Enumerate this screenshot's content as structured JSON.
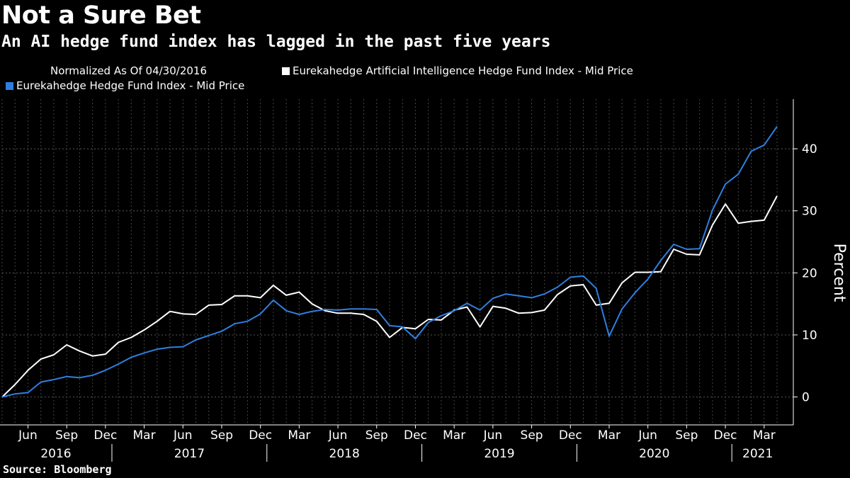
{
  "title": "Not a Sure Bet",
  "subtitle": "An AI hedge fund index has lagged in the past five years",
  "note": "Normalized As Of 04/30/2016",
  "source": "Source: Bloomberg",
  "colors": {
    "background": "#000000",
    "ai_series": "#ffffff",
    "hf_series": "#2f7fe0",
    "grid": "#555555"
  },
  "chart_data": {
    "type": "line",
    "ylabel": "Percent",
    "ylim": [
      -4.5,
      48
    ],
    "yticks": [
      0,
      10,
      20,
      30,
      40
    ],
    "grid": true,
    "legend_position": "top-left",
    "x_month_ticks": [
      "Jun",
      "Sep",
      "Dec",
      "Mar",
      "Jun",
      "Sep",
      "Dec",
      "Mar",
      "Jun",
      "Sep",
      "Dec",
      "Mar",
      "Jun",
      "Sep",
      "Dec",
      "Mar",
      "Jun",
      "Sep",
      "Dec",
      "Mar"
    ],
    "x_year_labels": [
      "2016",
      "2017",
      "2018",
      "2019",
      "2020",
      "2021"
    ],
    "x": [
      "2016-04",
      "2016-05",
      "2016-06",
      "2016-07",
      "2016-08",
      "2016-09",
      "2016-10",
      "2016-11",
      "2016-12",
      "2017-01",
      "2017-02",
      "2017-03",
      "2017-04",
      "2017-05",
      "2017-06",
      "2017-07",
      "2017-08",
      "2017-09",
      "2017-10",
      "2017-11",
      "2017-12",
      "2018-01",
      "2018-02",
      "2018-03",
      "2018-04",
      "2018-05",
      "2018-06",
      "2018-07",
      "2018-08",
      "2018-09",
      "2018-10",
      "2018-11",
      "2018-12",
      "2019-01",
      "2019-02",
      "2019-03",
      "2019-04",
      "2019-05",
      "2019-06",
      "2019-07",
      "2019-08",
      "2019-09",
      "2019-10",
      "2019-11",
      "2019-12",
      "2020-01",
      "2020-02",
      "2020-03",
      "2020-04",
      "2020-05",
      "2020-06",
      "2020-07",
      "2020-08",
      "2020-09",
      "2020-10",
      "2020-11",
      "2020-12",
      "2021-01",
      "2021-02",
      "2021-03",
      "2021-04"
    ],
    "series": [
      {
        "name": "Eurekahedge Artificial Intelligence Hedge Fund Index - Mid Price",
        "color": "#ffffff",
        "values": [
          0,
          2,
          4.3,
          6.1,
          6.8,
          8.4,
          7.4,
          6.6,
          6.9,
          8.8,
          9.6,
          10.8,
          12.2,
          13.8,
          13.4,
          13.3,
          14.8,
          14.9,
          16.3,
          16.3,
          16.0,
          18.0,
          16.4,
          16.9,
          15.0,
          13.9,
          13.5,
          13.5,
          13.3,
          12.2,
          9.6,
          11.2,
          11.0,
          12.5,
          12.4,
          14.0,
          14.5,
          11.3,
          14.6,
          14.3,
          13.5,
          13.6,
          14.0,
          16.5,
          17.9,
          18.1,
          14.8,
          15.1,
          18.4,
          20.1,
          20.1,
          20.2,
          23.8,
          23.0,
          22.9,
          27.7,
          31.1,
          28.0,
          28.3,
          28.5,
          32.4
        ]
      },
      {
        "name": "Eurekahedge Hedge Fund Index - Mid Price",
        "color": "#2f7fe0",
        "values": [
          0,
          0.5,
          0.7,
          2.4,
          2.8,
          3.3,
          3.1,
          3.5,
          4.3,
          5.3,
          6.4,
          7.1,
          7.7,
          8.0,
          8.1,
          9.2,
          9.9,
          10.6,
          11.8,
          12.2,
          13.4,
          15.6,
          13.9,
          13.3,
          13.8,
          14.1,
          14.0,
          14.2,
          14.2,
          14.1,
          11.5,
          11.3,
          9.4,
          12.0,
          13.1,
          13.9,
          15.1,
          14.0,
          15.9,
          16.6,
          16.3,
          16.0,
          16.6,
          17.7,
          19.3,
          19.5,
          17.5,
          9.8,
          14.2,
          16.8,
          19.0,
          22.0,
          24.6,
          23.8,
          23.9,
          30.1,
          34.3,
          35.9,
          39.6,
          40.6,
          43.6
        ]
      }
    ]
  }
}
